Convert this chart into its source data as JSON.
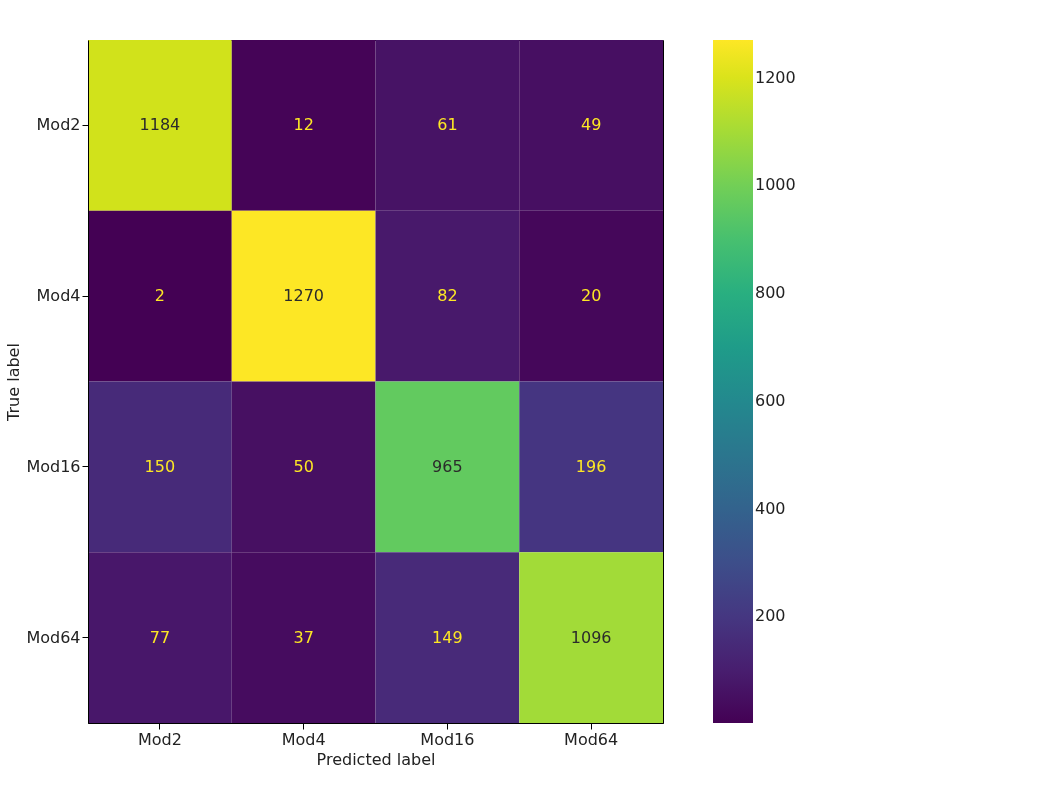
{
  "chart_data": {
    "type": "heatmap",
    "xlabel": "Predicted label",
    "ylabel": "True label",
    "categories": [
      "Mod2",
      "Mod4",
      "Mod16",
      "Mod64"
    ],
    "y_categories": [
      "Mod2",
      "Mod4",
      "Mod16",
      "Mod64"
    ],
    "cells": [
      [
        1184,
        12,
        61,
        49
      ],
      [
        2,
        1270,
        82,
        20
      ],
      [
        150,
        50,
        965,
        196
      ],
      [
        77,
        37,
        149,
        1096
      ]
    ],
    "clim": [
      2,
      1270
    ],
    "cticks": [
      200,
      400,
      600,
      800,
      1000,
      1200
    ],
    "data_labels": true,
    "grid": false
  }
}
